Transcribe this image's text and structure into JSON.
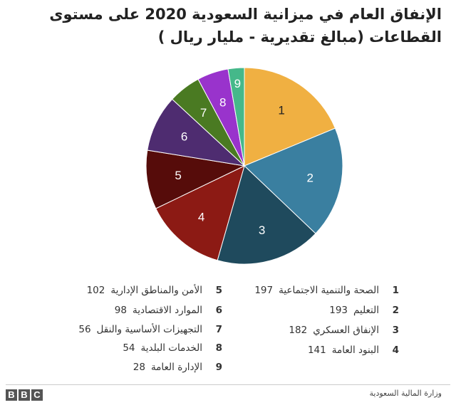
{
  "title_line1": "الإنفاق العام في ميزانية السعودية 2020 على مستوى",
  "title_line2": "القطاعات (مبالغ تقديرية - مليار ريال )",
  "source": "وزارة المالية السعودية",
  "logo": [
    "B",
    "B",
    "C"
  ],
  "chart_data": {
    "type": "pie",
    "title": "الإنفاق العام في ميزانية السعودية 2020 على مستوى القطاعات (مبالغ تقديرية - مليار ريال )",
    "categories": [
      "الصحة والتنمية الاجتماعية",
      "التعليم",
      "الإنفاق العسكري",
      "البنود العامة",
      "الأمن والمناطق الإدارية",
      "الموارد الاقتصادية",
      "التجهيزات الأساسية والنقل",
      "الخدمات البلدية",
      "الإدارة العامة"
    ],
    "slice_labels": [
      "1",
      "2",
      "3",
      "4",
      "5",
      "6",
      "7",
      "8",
      "9"
    ],
    "values": [
      197,
      193,
      182,
      141,
      102,
      98,
      56,
      54,
      28
    ],
    "colors": [
      "#f0b042",
      "#3a7fa0",
      "#1f4a5d",
      "#8c1a14",
      "#560c0a",
      "#4e2c70",
      "#4a7a22",
      "#9933cc",
      "#45b88a"
    ],
    "label_colors": [
      "#222222",
      "#ffffff",
      "#ffffff",
      "#ffffff",
      "#ffffff",
      "#ffffff",
      "#ffffff",
      "#ffffff",
      "#ffffff"
    ]
  }
}
